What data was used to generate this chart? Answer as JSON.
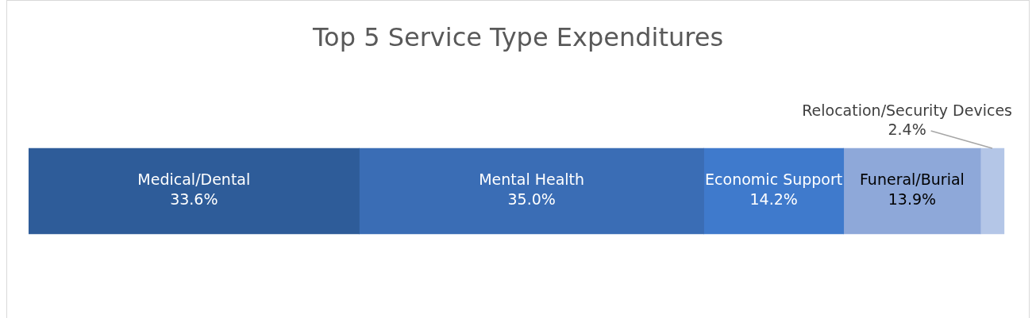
{
  "chart_data": {
    "type": "bar",
    "orientation": "horizontal",
    "stacked": true,
    "title": "Top 5 Service Type Expenditures",
    "categories": [
      null
    ],
    "tick_labels": false,
    "legend": false,
    "data_labels": true,
    "series": [
      {
        "name": "Medical/Dental",
        "color": "#2e5c99",
        "values": [
          33.6
        ],
        "value_labels": [
          "33.6%"
        ]
      },
      {
        "name": "Mental Health",
        "color": "#3a6db5",
        "values": [
          35.0
        ],
        "value_labels": [
          "35.0%"
        ]
      },
      {
        "name": "Economic Support",
        "color": "#3f7acc",
        "values": [
          14.2
        ],
        "value_labels": [
          "14.2%"
        ]
      },
      {
        "name": "Funeral/Burial",
        "color": "#8ea8d9",
        "values": [
          13.9
        ],
        "value_labels": [
          "13.9%"
        ]
      },
      {
        "name": "Relocation/Security Devices",
        "color": "#b4c6e7",
        "values": [
          2.4
        ],
        "value_labels": [
          "2.4%"
        ]
      }
    ]
  }
}
